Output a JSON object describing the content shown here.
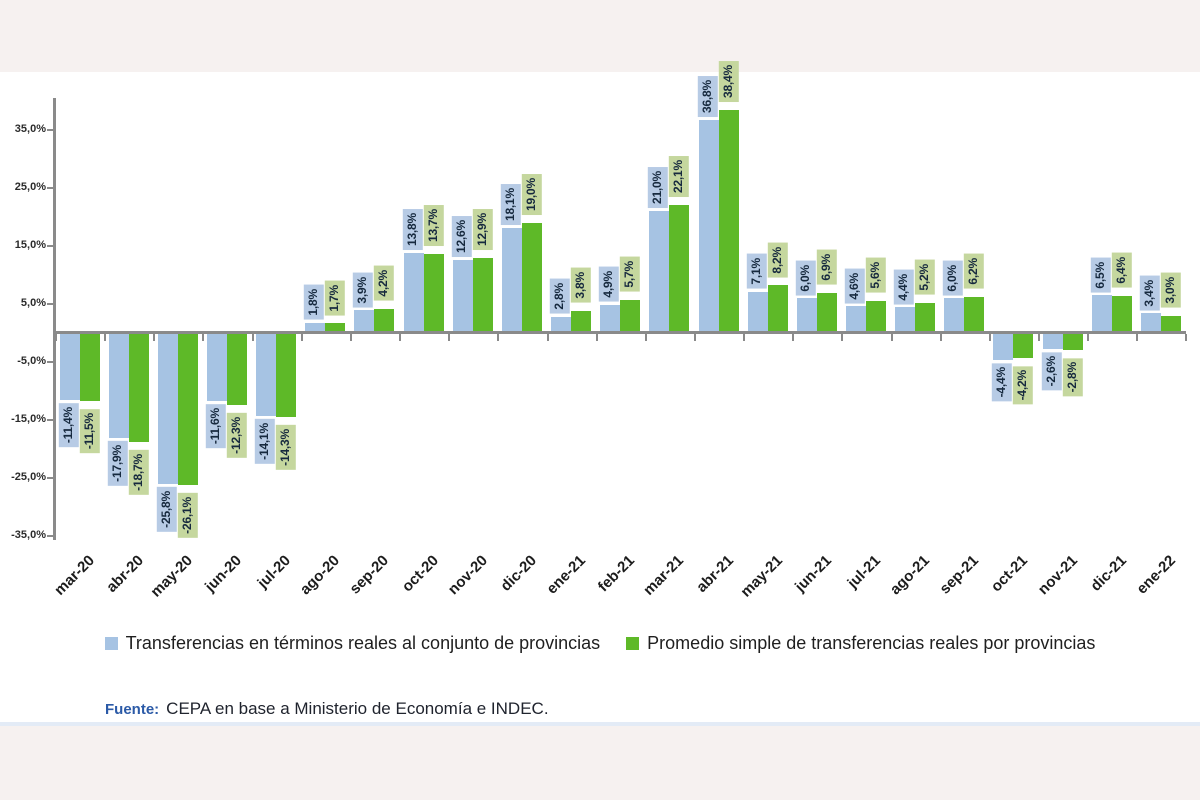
{
  "chart_data": {
    "type": "bar",
    "title": "",
    "xlabel": "",
    "ylabel": "",
    "ylim": [
      -36,
      40
    ],
    "grid": false,
    "legend_position": "bottom",
    "categories": [
      "mar-20",
      "abr-20",
      "may-20",
      "jun-20",
      "jul-20",
      "ago-20",
      "sep-20",
      "oct-20",
      "nov-20",
      "dic-20",
      "ene-21",
      "feb-21",
      "mar-21",
      "abr-21",
      "may-21",
      "jun-21",
      "jul-21",
      "ago-21",
      "sep-21",
      "oct-21",
      "nov-21",
      "dic-21",
      "ene-22"
    ],
    "yticks": [
      35,
      25,
      15,
      5,
      -5,
      -15,
      -25,
      -35
    ],
    "ytick_labels": [
      "35,0%",
      "25,0%",
      "15,0%",
      "5,0%",
      "-5,0%",
      "-15,0%",
      "-25,0%",
      "-35,0%"
    ],
    "series": [
      {
        "name": "Transferencias en términos reales al conjunto de provincias",
        "color": "#A6C3E3",
        "label_bg": "#B7CBE5",
        "values": [
          -11.4,
          -17.9,
          -25.8,
          -11.6,
          -14.1,
          1.8,
          3.9,
          13.8,
          12.6,
          18.1,
          2.8,
          4.9,
          21.0,
          36.8,
          7.1,
          6.0,
          4.6,
          4.4,
          6.0,
          -4.4,
          -2.6,
          6.5,
          3.4
        ],
        "labels": [
          "-11,4%",
          "-17,9%",
          "-25,8%",
          "-11,6%",
          "-14,1%",
          "1,8%",
          "3,9%",
          "13,8%",
          "12,6%",
          "18,1%",
          "2,8%",
          "4,9%",
          "21,0%",
          "36,8%",
          "7,1%",
          "6,0%",
          "4,6%",
          "4,4%",
          "6,0%",
          "-4,4%",
          "-2,6%",
          "6,5%",
          "3,4%"
        ]
      },
      {
        "name": "Promedio simple de transferencias reales por provincias",
        "color": "#5EB928",
        "label_bg": "#C5D79E",
        "values": [
          -11.5,
          -18.7,
          -26.1,
          -12.3,
          -14.3,
          1.7,
          4.2,
          13.7,
          12.9,
          19.0,
          3.8,
          5.7,
          22.1,
          38.4,
          8.2,
          6.9,
          5.6,
          5.2,
          6.2,
          -4.2,
          -2.8,
          6.4,
          3.0
        ],
        "labels": [
          "-11,5%",
          "-18,7%",
          "-26,1%",
          "-12,3%",
          "-14,3%",
          "1,7%",
          "4,2%",
          "13,7%",
          "12,9%",
          "19,0%",
          "3,8%",
          "5,7%",
          "22,1%",
          "38,4%",
          "8,2%",
          "6,9%",
          "5,6%",
          "5,2%",
          "6,2%",
          "-4,2%",
          "-2,8%",
          "6,4%",
          "3,0%"
        ]
      }
    ]
  },
  "source": {
    "prefix": "Fuente:",
    "text": "CEPA en base a Ministerio de Economía e INDEC."
  }
}
